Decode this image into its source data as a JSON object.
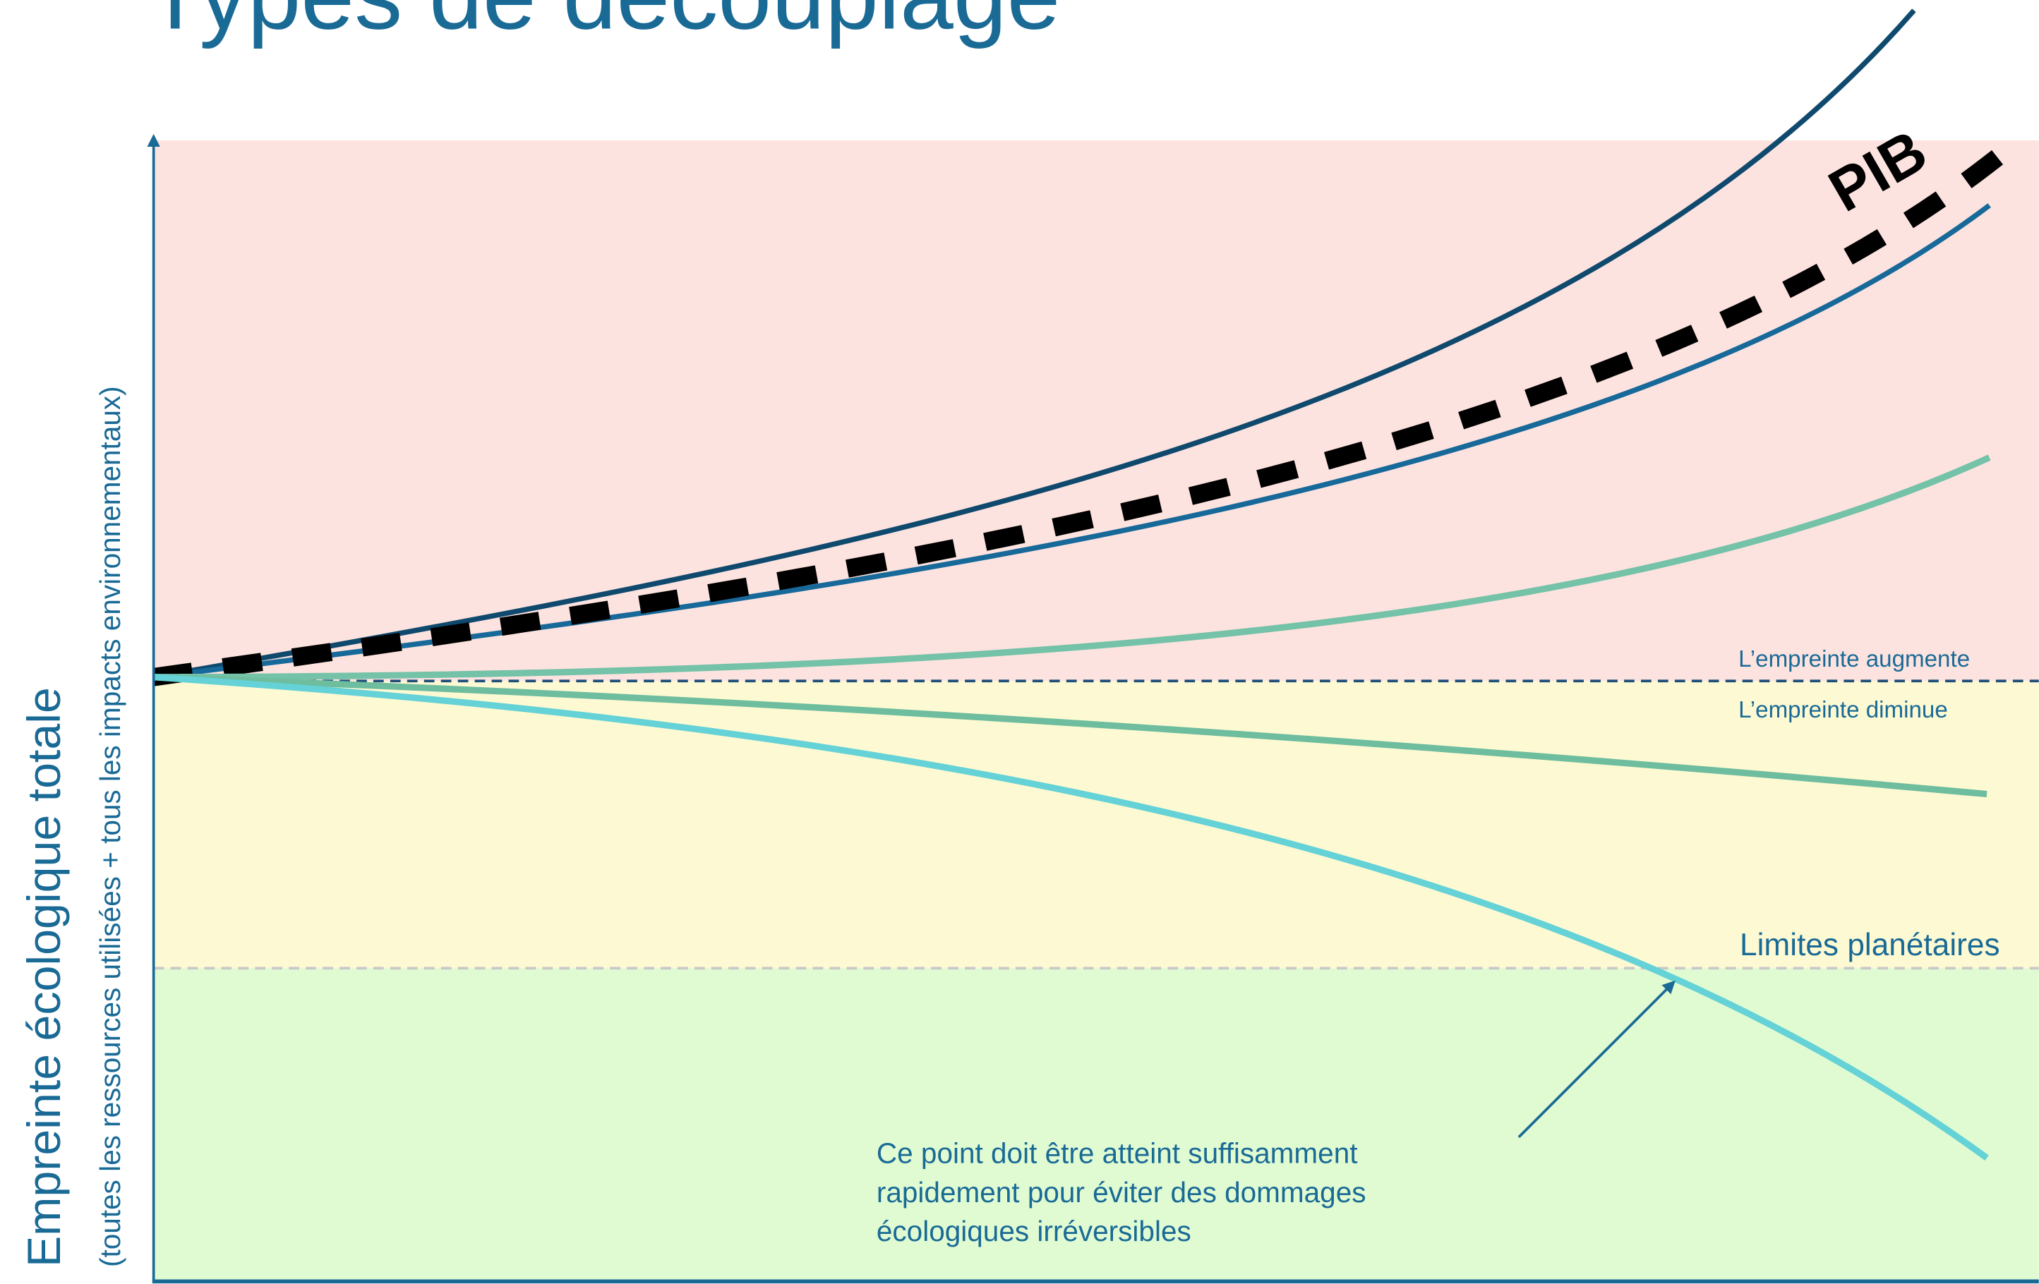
{
  "title": "Types de découplage",
  "axis_label": "Empreinte écologique totale",
  "axis_sublabel": "(toutes les ressources utilisées + tous les impacts environnementaux)",
  "curve_label": "PIB",
  "zones": {
    "above": "L’empreinte augmente",
    "below": "L’empreinte diminue"
  },
  "limit_label": "Limites planétaires",
  "note": [
    "Ce point doit être atteint suffisamment",
    "rapidement pour éviter des dommages",
    "écologiques irréversibles"
  ]
}
